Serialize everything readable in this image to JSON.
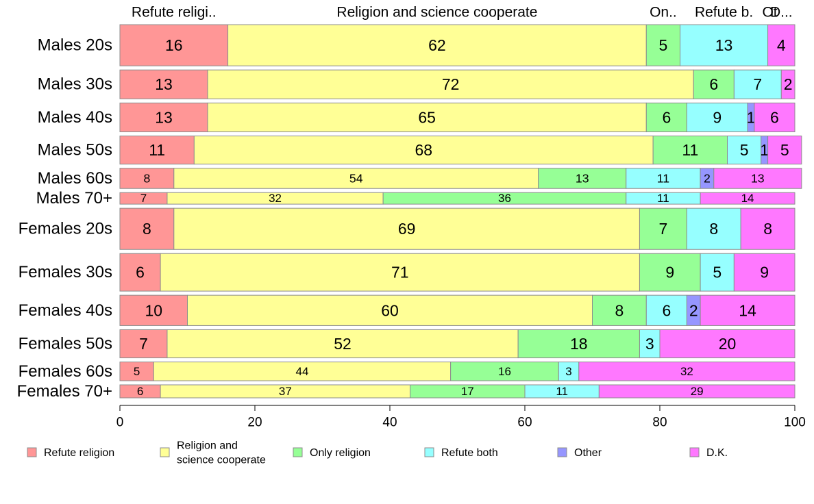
{
  "chart_data": {
    "type": "bar",
    "orientation": "horizontal",
    "stacked": true,
    "variable_width": true,
    "title": "",
    "xlabel": "",
    "ylabel": "",
    "xlim": [
      0,
      100
    ],
    "x_ticks": [
      "0",
      "20",
      "40",
      "60",
      "80",
      "100"
    ],
    "grid": false,
    "legend_position": "bottom",
    "top_labels": [
      "Refute religi..",
      "Religion and science cooperate",
      "On..",
      "Refute b.",
      "Ot",
      "D..."
    ],
    "categories": [
      "Males 20s",
      "Males 30s",
      "Males 40s",
      "Males 50s",
      "Males 60s",
      "Males 70+",
      "Females 20s",
      "Females 30s",
      "Females 40s",
      "Females 50s",
      "Females 60s",
      "Females 70+"
    ],
    "series": [
      {
        "name": "Refute religion",
        "color": "#ff9696",
        "values": [
          16,
          13,
          13,
          11,
          8,
          7,
          8,
          6,
          10,
          7,
          5,
          6
        ],
        "labels": [
          "16",
          "13",
          "13",
          "11",
          "8",
          "7",
          "8",
          "6",
          "10",
          "7",
          "5",
          "6"
        ]
      },
      {
        "name": "Religion and\nscience cooperate",
        "color": "#ffff96",
        "values": [
          62,
          72,
          65,
          68,
          54,
          32,
          69,
          71,
          60,
          52,
          44,
          37
        ],
        "labels": [
          "62",
          "72",
          "65",
          "68",
          "54",
          "32",
          "69",
          "71",
          "60",
          "52",
          "44",
          "37"
        ]
      },
      {
        "name": "Only religion",
        "color": "#96ff96",
        "values": [
          5,
          6,
          6,
          11,
          13,
          36,
          7,
          9,
          8,
          18,
          16,
          17
        ],
        "labels": [
          "5",
          "6",
          "6",
          "11",
          "13",
          "36",
          "7",
          "9",
          "8",
          "18",
          "16",
          "17"
        ]
      },
      {
        "name": "Refute both",
        "color": "#96ffff",
        "values": [
          13,
          7,
          9,
          5,
          11,
          11,
          8,
          5,
          6,
          3,
          3,
          11
        ],
        "labels": [
          "13",
          "7",
          "9",
          "5",
          "11",
          "11",
          "8",
          "5",
          "6",
          "3",
          "3",
          "11"
        ]
      },
      {
        "name": "Other",
        "color": "#9696ff",
        "values": [
          0,
          0,
          1,
          1,
          2,
          0,
          0,
          0,
          2,
          0,
          0,
          0
        ],
        "labels": [
          "",
          "",
          "1",
          "1",
          "2",
          "",
          "",
          "",
          "2",
          "",
          "",
          ""
        ]
      },
      {
        "name": "D.K.",
        "color": "#ff78ff",
        "values": [
          4,
          2,
          6,
          5,
          13,
          14,
          8,
          9,
          14,
          20,
          32,
          29
        ],
        "labels": [
          "4",
          "2",
          "6",
          "5",
          "13",
          "14",
          "8",
          "9",
          "14",
          "20",
          "32",
          "29"
        ]
      }
    ],
    "row_weights": [
      57,
      40,
      40,
      39,
      28,
      16,
      57,
      52,
      42,
      39,
      26,
      18
    ]
  }
}
